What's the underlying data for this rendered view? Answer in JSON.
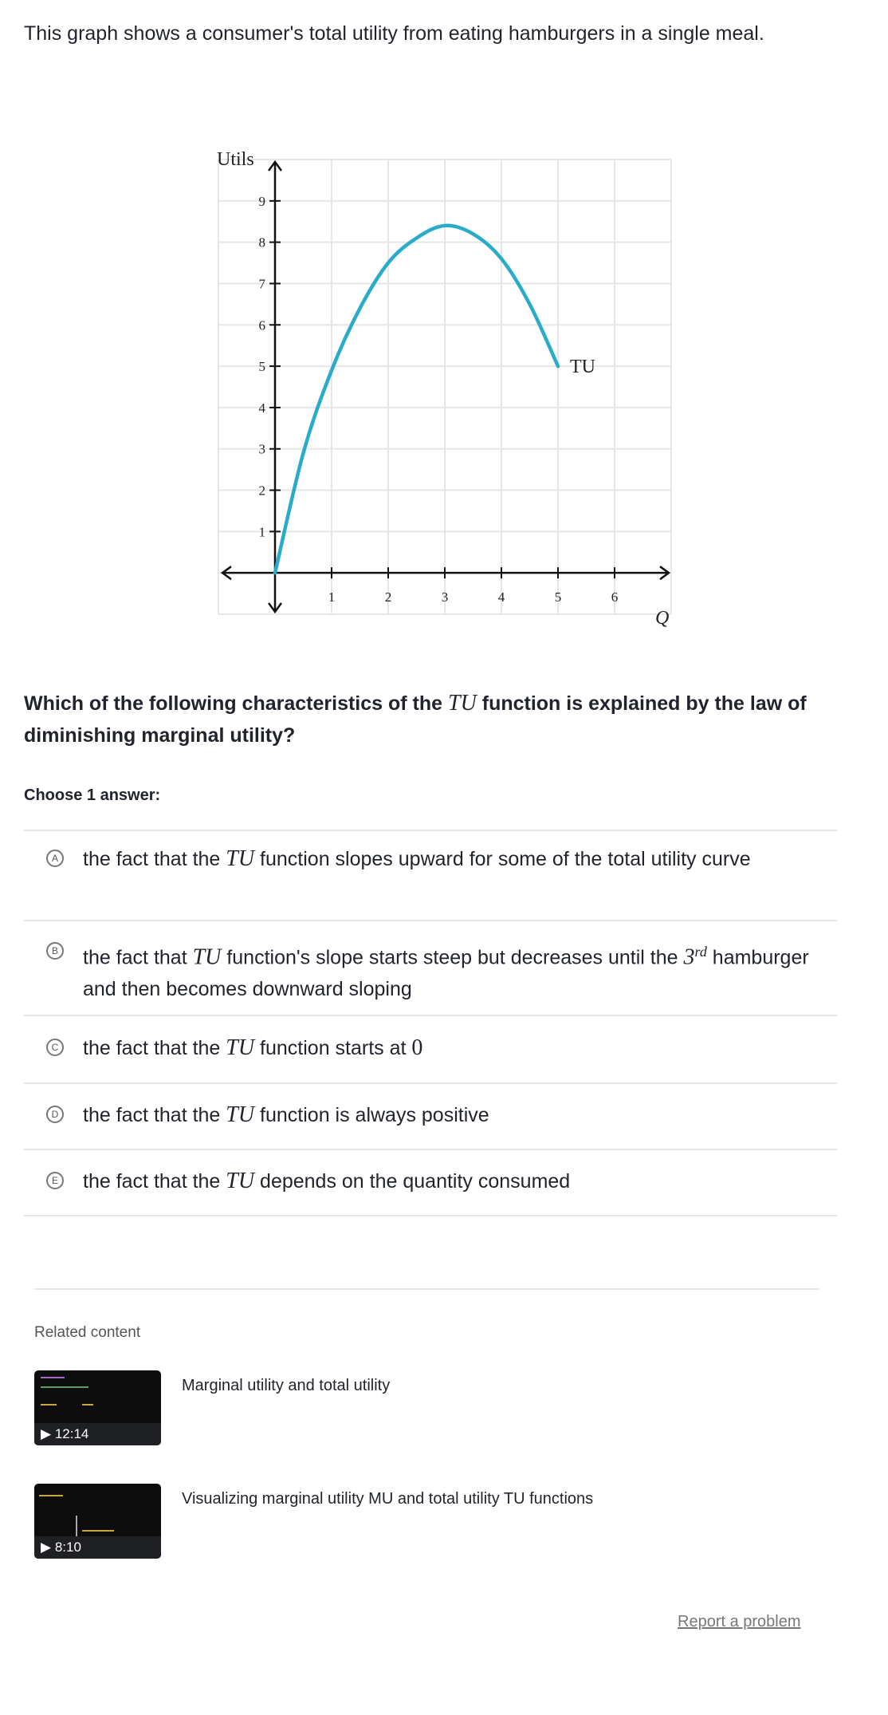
{
  "intro": "This graph shows a consumer's total utility from eating hamburgers in a single meal.",
  "question": {
    "before": "Which of the following characteristics of the ",
    "math": "TU",
    "after": " function is explained by the law of diminishing marginal utility?"
  },
  "choose_label": "Choose 1 answer:",
  "options": [
    {
      "letter": "A",
      "before": "the fact that the ",
      "math": "TU",
      "after": " function slopes upward for some of the total utility curve"
    },
    {
      "letter": "B",
      "before": "the fact that ",
      "math": "TU",
      "after": " function's slope starts steep but decreases until the ",
      "math2": "3",
      "sup": "rd",
      "after2": " hamburger and then becomes downward sloping"
    },
    {
      "letter": "C",
      "before": "the fact that the ",
      "math": "TU",
      "after": " function starts at ",
      "math2": "0"
    },
    {
      "letter": "D",
      "before": "the fact that the ",
      "math": "TU",
      "after": " function is always positive"
    },
    {
      "letter": "E",
      "before": "the fact that the ",
      "math": "TU",
      "after": " depends on the quantity consumed"
    }
  ],
  "related": {
    "heading": "Related content",
    "items": [
      {
        "title": "Marginal utility and total utility",
        "duration": "12:14"
      },
      {
        "title": "Visualizing marginal utility MU and total utility TU functions",
        "duration": "8:10"
      }
    ]
  },
  "report_link": "Report a problem",
  "chart_data": {
    "type": "line",
    "ylabel": "Utils",
    "xlabel": "Q",
    "xlim": [
      -1,
      7
    ],
    "ylim": [
      -1,
      10
    ],
    "x_ticks": [
      "1",
      "2",
      "3",
      "4",
      "5",
      "6"
    ],
    "y_ticks": [
      "1",
      "2",
      "3",
      "4",
      "5",
      "6",
      "7",
      "8",
      "9"
    ],
    "grid": true,
    "line_color": "#29abca",
    "series": [
      {
        "name": "TU",
        "x": [
          0,
          0.5,
          1,
          1.5,
          2,
          2.5,
          3,
          3.5,
          4,
          4.5,
          5
        ],
        "y": [
          0,
          2.9,
          4.9,
          6.4,
          7.5,
          8.1,
          8.4,
          8.2,
          7.6,
          6.5,
          5
        ]
      }
    ]
  }
}
